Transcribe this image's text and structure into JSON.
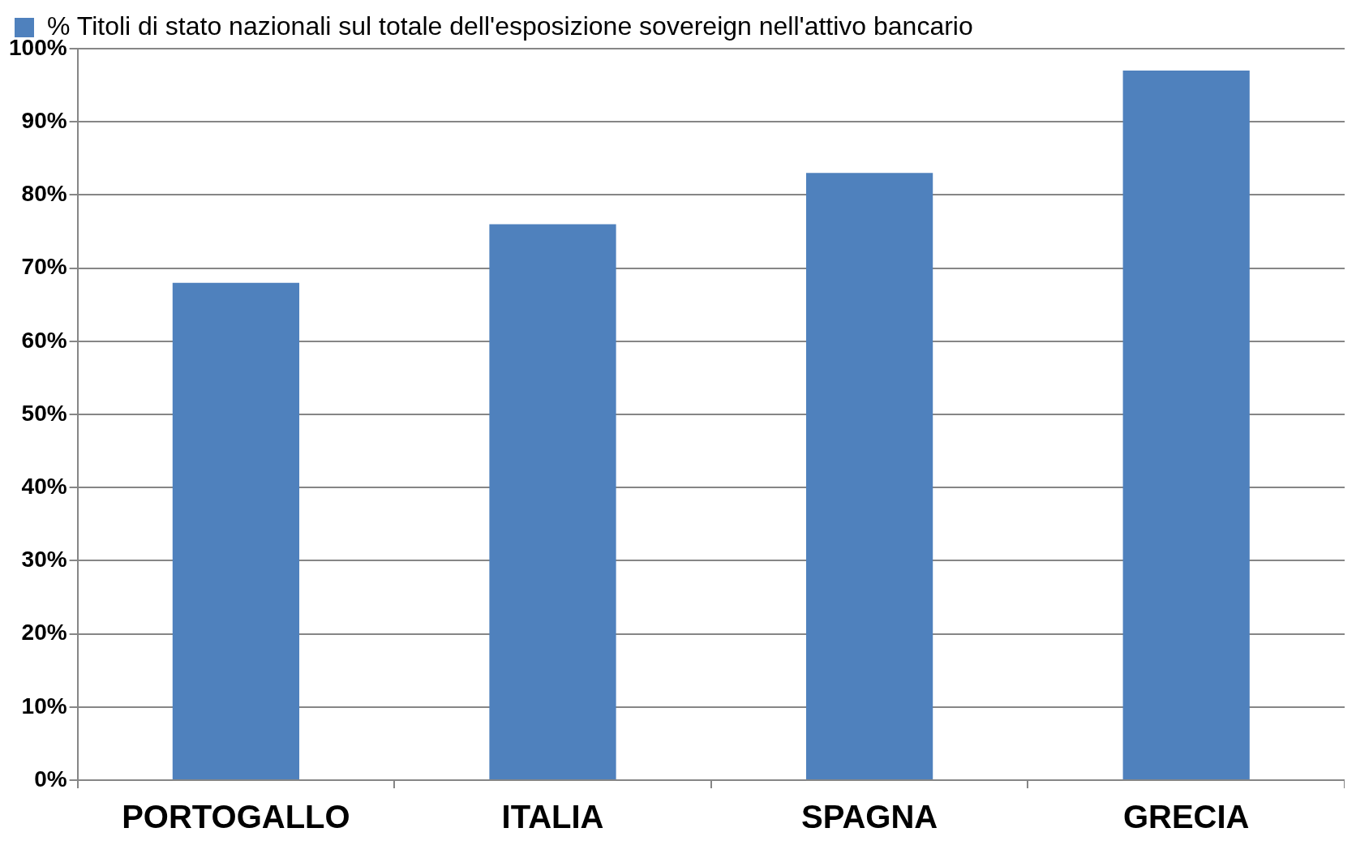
{
  "chart_data": {
    "type": "bar",
    "categories": [
      "PORTOGALLO",
      "ITALIA",
      "SPAGNA",
      "GRECIA"
    ],
    "series": [
      {
        "name": "% Titoli di stato nazionali sul totale dell'esposizione sovereign nell'attivo bancario",
        "color": "#4f81bd",
        "values": [
          68,
          76,
          83,
          97
        ]
      }
    ],
    "ylim": [
      0,
      100
    ],
    "yticks": [
      {
        "value": 0,
        "label": "0%"
      },
      {
        "value": 10,
        "label": "10%"
      },
      {
        "value": 20,
        "label": "20%"
      },
      {
        "value": 30,
        "label": "30%"
      },
      {
        "value": 40,
        "label": "40%"
      },
      {
        "value": 50,
        "label": "50%"
      },
      {
        "value": 60,
        "label": "60%"
      },
      {
        "value": 70,
        "label": "70%"
      },
      {
        "value": 80,
        "label": "80%"
      },
      {
        "value": 90,
        "label": "90%"
      },
      {
        "value": 100,
        "label": "100%"
      }
    ],
    "grid": "y",
    "legend": "top left"
  }
}
